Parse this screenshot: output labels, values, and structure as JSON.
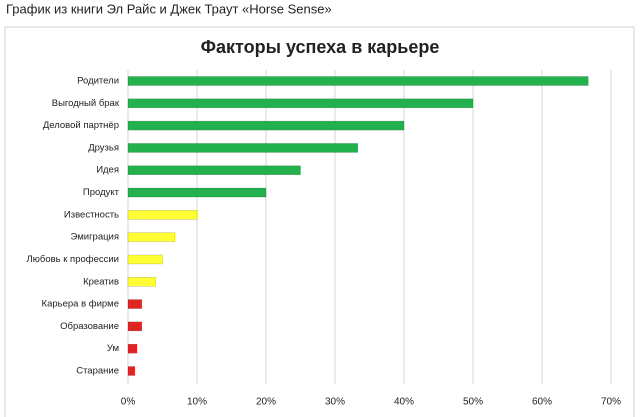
{
  "caption": "График из книги Эл Райс и Джек Траут «Horse Sense»",
  "chart_data": {
    "type": "bar",
    "orientation": "horizontal",
    "title": "Факторы успеха в карьере",
    "categories": [
      "Родители",
      "Выгодный брак",
      "Деловой партнёр",
      "Друзья",
      "Идея",
      "Продукт",
      "Известность",
      "Эмиграция",
      "Любовь к профессии",
      "Креатив",
      "Карьера в фирме",
      "Образование",
      "Ум",
      "Старание"
    ],
    "values": [
      66.7,
      50,
      40,
      33.3,
      25,
      20,
      10,
      6.8,
      5,
      4,
      2,
      2,
      1.3,
      1
    ],
    "colors": [
      "#22b14c",
      "#22b14c",
      "#22b14c",
      "#22b14c",
      "#22b14c",
      "#22b14c",
      "#ffff33",
      "#ffff33",
      "#ffff33",
      "#ffff33",
      "#e02424",
      "#e02424",
      "#e02424",
      "#e02424"
    ],
    "xlim": [
      0,
      70
    ],
    "xticks": [
      {
        "value": 0,
        "label": "0%"
      },
      {
        "value": 10,
        "label": "10%"
      },
      {
        "value": 20,
        "label": "20%"
      },
      {
        "value": 30,
        "label": "30%"
      },
      {
        "value": 40,
        "label": "40%"
      },
      {
        "value": 50,
        "label": "50%"
      },
      {
        "value": 60,
        "label": "60%"
      },
      {
        "value": 70,
        "label": "70%"
      }
    ],
    "grid": true
  }
}
